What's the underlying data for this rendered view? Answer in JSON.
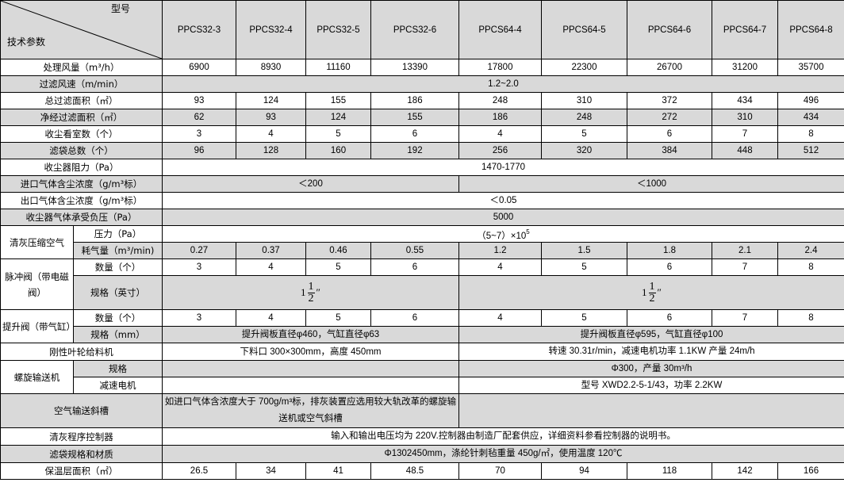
{
  "header": {
    "corner_top": "型号",
    "corner_bottom": "技术参数",
    "models": [
      "PPCS32-3",
      "PPCS32-4",
      "PPCS32-5",
      "PPCS32-6",
      "PPCS64-4",
      "PPCS64-5",
      "PPCS64-6",
      "PPCS64-7",
      "PPCS64-8"
    ]
  },
  "rows": [
    {
      "label": "处理风量（m³/h）",
      "values": [
        "6900",
        "8930",
        "11160",
        "13390",
        "17800",
        "22300",
        "26700",
        "31200",
        "35700"
      ]
    },
    {
      "label": "过滤风速（m/min）",
      "values": [
        "1.2~2.0"
      ]
    },
    {
      "label": "总过滤面积（㎡）",
      "values": [
        "93",
        "124",
        "155",
        "186",
        "248",
        "310",
        "372",
        "434",
        "496"
      ]
    },
    {
      "label": "净经过滤面积（㎡）",
      "values": [
        "62",
        "93",
        "124",
        "155",
        "186",
        "248",
        "272",
        "310",
        "434"
      ]
    },
    {
      "label": "收尘看室数（个）",
      "values": [
        "3",
        "4",
        "5",
        "6",
        "4",
        "5",
        "6",
        "7",
        "8"
      ]
    },
    {
      "label": "滤袋总数（个）",
      "values": [
        "96",
        "128",
        "160",
        "192",
        "256",
        "320",
        "384",
        "448",
        "512"
      ]
    },
    {
      "label": "收尘器阻力（Pa）",
      "values": [
        "1470-1770"
      ]
    },
    {
      "label": "进口气体含尘浓度（g/m³标）",
      "values": [
        "＜200",
        "＜1000"
      ]
    },
    {
      "label": "出口气体含尘浓度（g/m³标）",
      "values": [
        "＜0.05"
      ]
    },
    {
      "label": "收尘器气体承受负压（Pa）",
      "values": [
        "5000"
      ]
    },
    {
      "group": "清灰压缩空气",
      "items": [
        {
          "label": "压力（Pa）",
          "values": [
            "（5~7）×10"
          ],
          "exponent": "5"
        },
        {
          "label": "耗气量（m³/min)",
          "values": [
            "0.27",
            "0.37",
            "0.46",
            "0.55",
            "1.2",
            "1.5",
            "1.8",
            "2.1",
            "2.4"
          ]
        }
      ]
    },
    {
      "group": "脉冲阀（带电磁阀）",
      "items": [
        {
          "label": "数量（个）",
          "values": [
            "3",
            "4",
            "5",
            "6",
            "4",
            "5",
            "6",
            "7",
            "8"
          ]
        },
        {
          "label": "规格（英寸）",
          "fractions": [
            {
              "whole": "1",
              "num": "1",
              "den": "2",
              "unit": "″"
            },
            {
              "whole": "1",
              "num": "1",
              "den": "2",
              "unit": "″"
            }
          ]
        }
      ]
    },
    {
      "group": "提升阀（带气缸）",
      "items": [
        {
          "label": "数量（个）",
          "values": [
            "3",
            "4",
            "5",
            "6",
            "4",
            "5",
            "6",
            "7",
            "8"
          ]
        },
        {
          "label": "规格（mm）",
          "values": [
            "提升阀板直径φ460，气缸直径φ63",
            "提升阀板直径φ595，气缸直径φ100"
          ]
        }
      ]
    },
    {
      "label": "刚性叶轮给料机",
      "values": [
        "下料口 300×300mm，高度 450mm",
        "转速 30.31r/min，减速电机功率 1.1KW 产量 24m/h"
      ]
    },
    {
      "group": "螺旋输送机",
      "items": [
        {
          "label": "规格",
          "values": [
            "",
            "Φ300，产量 30m³/h"
          ]
        },
        {
          "label": "减速电机",
          "values": [
            "",
            "型号 XWD2.2-5-1/43，功率 2.2KW"
          ]
        }
      ]
    },
    {
      "label": "空气输送斜槽",
      "values": [
        "如进口气体含浓度大于 700g/m³标，排灰装置应选用较大轨改革的螺旋输送机或空气斜槽",
        ""
      ]
    },
    {
      "label": "清灰程序控制器",
      "values": [
        "输入和输出电压均为 220V.控制器由制造厂配套供应，详细资料参看控制器的说明书。"
      ]
    },
    {
      "label": "滤袋规格和材质",
      "values": [
        "Φ1302450mm，涤纶针刺毡重量 450g/㎡，使用温度 120℃"
      ]
    },
    {
      "label": "保温层面积（㎡）",
      "values": [
        "26.5",
        "34",
        "41",
        "48.5",
        "70",
        "94",
        "118",
        "142",
        "166"
      ]
    }
  ],
  "colors": {
    "shade": "#d9d9d9",
    "border": "#000000"
  }
}
